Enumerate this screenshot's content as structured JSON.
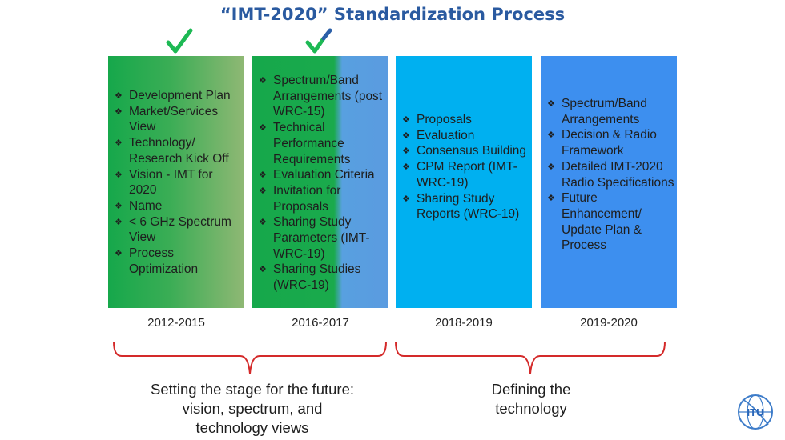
{
  "title": "“IMT-2020” Standardization Process",
  "colors": {
    "title": "#2a5aa0",
    "check_green": "#1db954",
    "brace_red": "#d42a2a"
  },
  "columns": [
    {
      "year": "2012-2015",
      "status": "completed",
      "items": [
        "Development Plan",
        "Market/Services View",
        "Technology/ Research Kick Off",
        "Vision - IMT for 2020",
        "Name",
        "< 6 GHz Spectrum View",
        "Process Optimization"
      ]
    },
    {
      "year": "2016-2017",
      "status": "in-progress",
      "items": [
        "Spectrum/Band Arrangements (post WRC-15)",
        "Technical Performance Requirements",
        "Evaluation Criteria",
        "Invitation for Proposals",
        "Sharing Study Parameters (IMT-WRC-19)",
        "Sharing Studies (WRC-19)"
      ]
    },
    {
      "year": "2018-2019",
      "status": "planned",
      "items": [
        "Proposals",
        "Evaluation",
        "Consensus Building",
        "CPM Report (IMT-WRC-19)",
        "Sharing Study Reports (WRC-19)"
      ]
    },
    {
      "year": "2019-2020",
      "status": "planned",
      "items": [
        "Spectrum/Band Arrangements",
        "Decision & Radio Framework",
        "Detailed IMT-2020 Radio Specifications",
        "Future Enhancement/ Update Plan & Process"
      ]
    }
  ],
  "groups": [
    {
      "caption_lines": [
        "Setting the stage for the future:",
        "vision, spectrum, and",
        "technology views"
      ]
    },
    {
      "caption_lines": [
        "Defining the",
        "technology"
      ]
    }
  ],
  "logo": {
    "text": "ITU"
  }
}
